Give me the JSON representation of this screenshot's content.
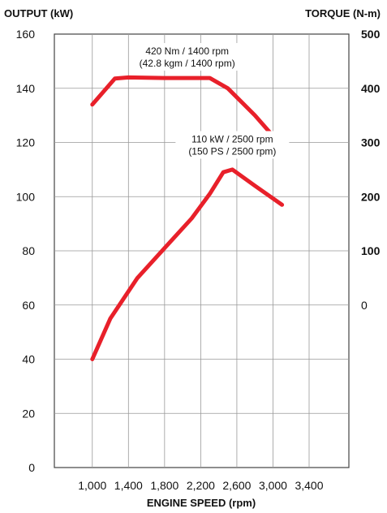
{
  "chart_data": {
    "type": "line",
    "left_axis_title": "OUTPUT (kW)",
    "right_axis_title": "TORQUE (N-m)",
    "xlabel": "ENGINE SPEED (rpm)",
    "x_tick_labels": [
      "1,000",
      "1,400",
      "1,800",
      "2,200",
      "2,600",
      "3,000",
      "3,400"
    ],
    "x_ticks": [
      1000,
      1400,
      1800,
      2200,
      2600,
      3000,
      3400
    ],
    "left_tick_labels": [
      "0",
      "20",
      "40",
      "60",
      "80",
      "100",
      "120",
      "140",
      "160"
    ],
    "left_ticks": [
      0,
      20,
      40,
      60,
      80,
      100,
      120,
      140,
      160
    ],
    "right_tick_labels": [
      "500",
      "400",
      "300",
      "200",
      "100",
      "0"
    ],
    "right_ticks": [
      500,
      400,
      300,
      200,
      100,
      0
    ],
    "xlim": [
      580,
      3840
    ],
    "left_ylim": [
      0,
      160
    ],
    "right_ylim": [
      -300,
      500
    ],
    "grid": true,
    "series": [
      {
        "axis": "right",
        "color": "#e8202a",
        "x": [
          1000,
          1250,
          1400,
          1800,
          2200,
          2300,
          2500,
          2800,
          3100
        ],
        "y": [
          370,
          418,
          420,
          419,
          419,
          419,
          400,
          350,
          293
        ]
      },
      {
        "axis": "left",
        "color": "#e8202a",
        "x": [
          1000,
          1200,
          1500,
          1800,
          2100,
          2300,
          2450,
          2550,
          2800,
          3100
        ],
        "y": [
          40,
          55,
          70,
          81,
          92,
          101,
          109,
          110,
          104,
          97
        ]
      }
    ],
    "annotations": [
      {
        "lines": [
          "420 Nm / 1400 rpm",
          "(42.8 kgm / 1400 rpm)"
        ],
        "x": 2050,
        "y": 152.5
      },
      {
        "lines": [
          "110 kW / 2500 rpm",
          "(150 PS / 2500 rpm)"
        ],
        "x": 2550,
        "y": 120
      }
    ]
  }
}
